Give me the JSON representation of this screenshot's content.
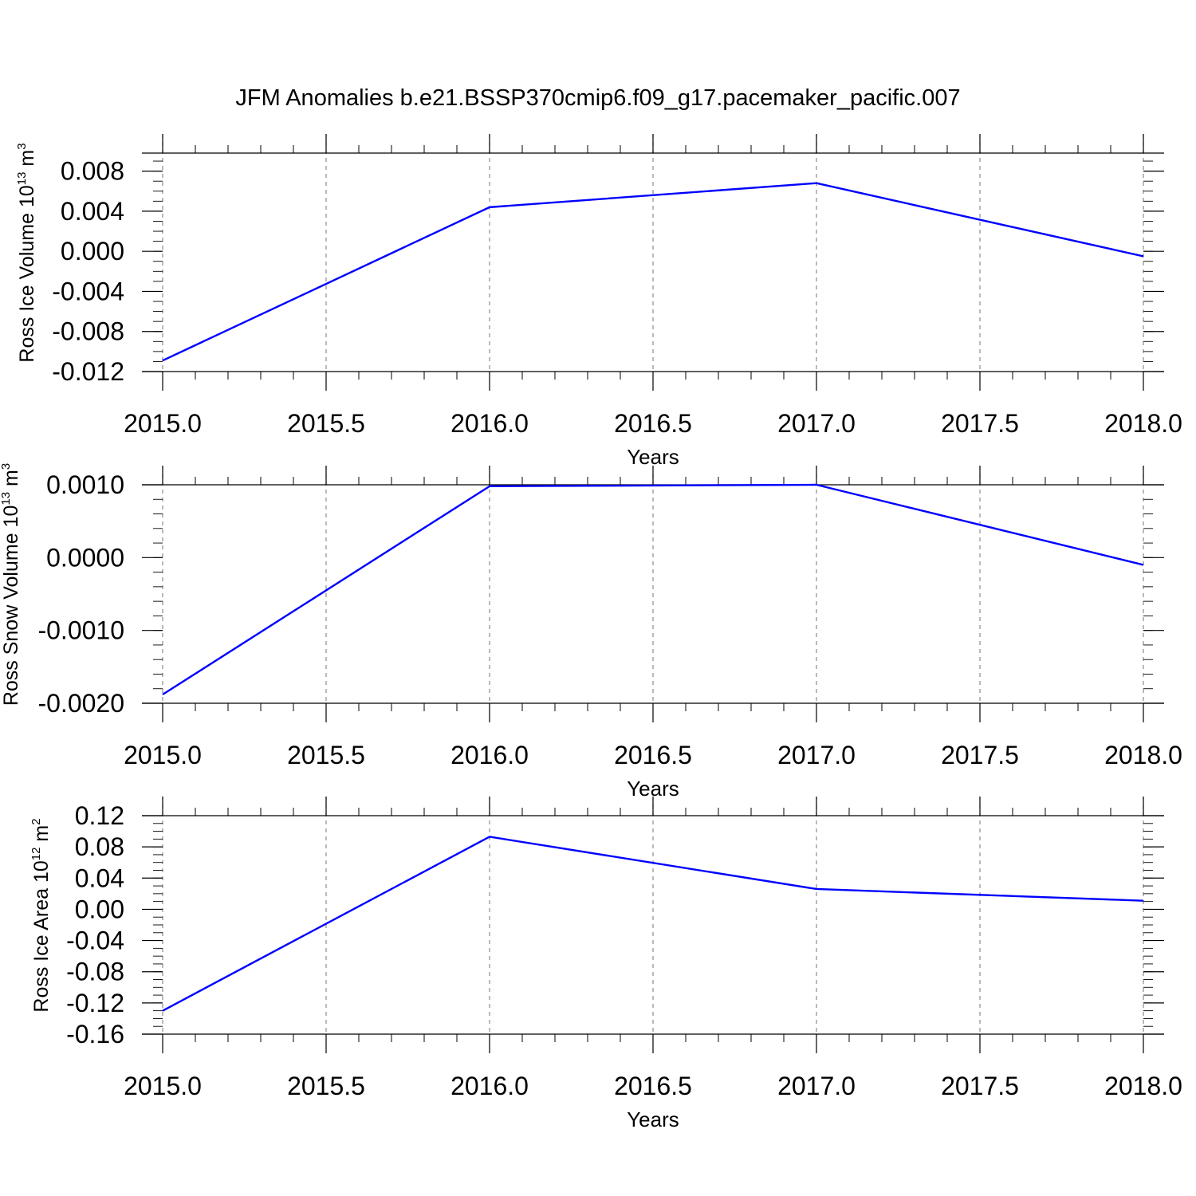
{
  "title": "JFM Anomalies b.e21.BSSP370cmip6.f09_g17.pacemaker_pacific.007",
  "colors": {
    "line": "#0000ff",
    "axis": "#000000",
    "grid": "#8c8c8c",
    "background": "#ffffff"
  },
  "chart_data": [
    {
      "type": "line",
      "ylabel": {
        "text": "Ross Ice Volume 10",
        "sup": "13",
        "unit": " m",
        "unit_sup": "3"
      },
      "xlabel": "Years",
      "xlim": [
        2015.0,
        2018.0
      ],
      "ylim": [
        -0.012,
        0.0098
      ],
      "x_ticks": [
        2015.0,
        2015.5,
        2016.0,
        2016.5,
        2017.0,
        2017.5,
        2018.0
      ],
      "x_tick_labels": [
        "2015.0",
        "2015.5",
        "2016.0",
        "2016.5",
        "2017.0",
        "2017.5",
        "2018.0"
      ],
      "y_ticks": [
        -0.012,
        -0.008,
        -0.004,
        0.0,
        0.004,
        0.008
      ],
      "y_tick_labels": [
        "-0.012",
        "-0.008",
        "-0.004",
        "0.000",
        "0.004",
        "0.008"
      ],
      "y_minor_step": 0.001,
      "grid": "vertical dashed at major x ticks",
      "series": [
        {
          "x": [
            2015,
            2016,
            2017,
            2018
          ],
          "y": [
            -0.0109,
            0.0044,
            0.0068,
            -0.0005
          ]
        }
      ]
    },
    {
      "type": "line",
      "ylabel": {
        "text": "Ross Snow Volume 10",
        "sup": "13",
        "unit": " m",
        "unit_sup": "3"
      },
      "xlabel": "Years",
      "xlim": [
        2015.0,
        2018.0
      ],
      "ylim": [
        -0.002,
        0.001
      ],
      "x_ticks": [
        2015.0,
        2015.5,
        2016.0,
        2016.5,
        2017.0,
        2017.5,
        2018.0
      ],
      "x_tick_labels": [
        "2015.0",
        "2015.5",
        "2016.0",
        "2016.5",
        "2017.0",
        "2017.5",
        "2018.0"
      ],
      "y_ticks": [
        -0.002,
        -0.001,
        0.0,
        0.001
      ],
      "y_tick_labels": [
        "-0.0020",
        "-0.0010",
        "0.0000",
        "0.0010"
      ],
      "y_minor_step": 0.0002,
      "grid": "vertical dashed at major x ticks",
      "series": [
        {
          "x": [
            2015,
            2016,
            2017,
            2018
          ],
          "y": [
            -0.00188,
            0.00098,
            0.001,
            -0.0001
          ]
        }
      ]
    },
    {
      "type": "line",
      "ylabel": {
        "text": "Ross Ice Area 10",
        "sup": "12",
        "unit": " m",
        "unit_sup": "2"
      },
      "xlabel": "Years",
      "xlim": [
        2015.0,
        2018.0
      ],
      "ylim": [
        -0.16,
        0.12
      ],
      "x_ticks": [
        2015.0,
        2015.5,
        2016.0,
        2016.5,
        2017.0,
        2017.5,
        2018.0
      ],
      "x_tick_labels": [
        "2015.0",
        "2015.5",
        "2016.0",
        "2016.5",
        "2017.0",
        "2017.5",
        "2018.0"
      ],
      "y_ticks": [
        -0.16,
        -0.12,
        -0.08,
        -0.04,
        0.0,
        0.04,
        0.08,
        0.12
      ],
      "y_tick_labels": [
        "-0.16",
        "-0.12",
        "-0.08",
        "-0.04",
        "0.00",
        "0.04",
        "0.08",
        "0.12"
      ],
      "y_minor_step": 0.01,
      "grid": "vertical dashed at major x ticks",
      "series": [
        {
          "x": [
            2015,
            2016,
            2017,
            2018
          ],
          "y": [
            -0.13,
            0.093,
            0.026,
            0.011
          ]
        }
      ]
    }
  ]
}
